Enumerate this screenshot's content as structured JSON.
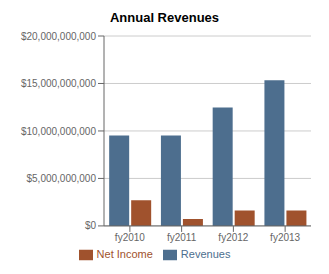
{
  "chart_data": {
    "type": "bar",
    "title": "Annual Revenues",
    "categories": [
      "fy2010",
      "fy2011",
      "fy2012",
      "fy2013"
    ],
    "series": [
      {
        "name": "Revenues",
        "color": "#4d6e8e",
        "values": [
          9526000000,
          9526000000,
          12478000000,
          15351000000
        ]
      },
      {
        "name": "Net Income",
        "color": "#a0522d",
        "values": [
          2700000000,
          726000000,
          1612000000,
          1612000000
        ]
      }
    ],
    "ylim": [
      0,
      20000000000
    ],
    "yticks": [
      {
        "value": 0,
        "label": "$0"
      },
      {
        "value": 5000000000,
        "label": "$5,000,000,000"
      },
      {
        "value": 10000000000,
        "label": "$10,000,000,000"
      },
      {
        "value": 15000000000,
        "label": "$15,000,000,000"
      },
      {
        "value": 20000000000,
        "label": "$20,000,000,000"
      }
    ],
    "grid": true,
    "legend": "bottom"
  }
}
